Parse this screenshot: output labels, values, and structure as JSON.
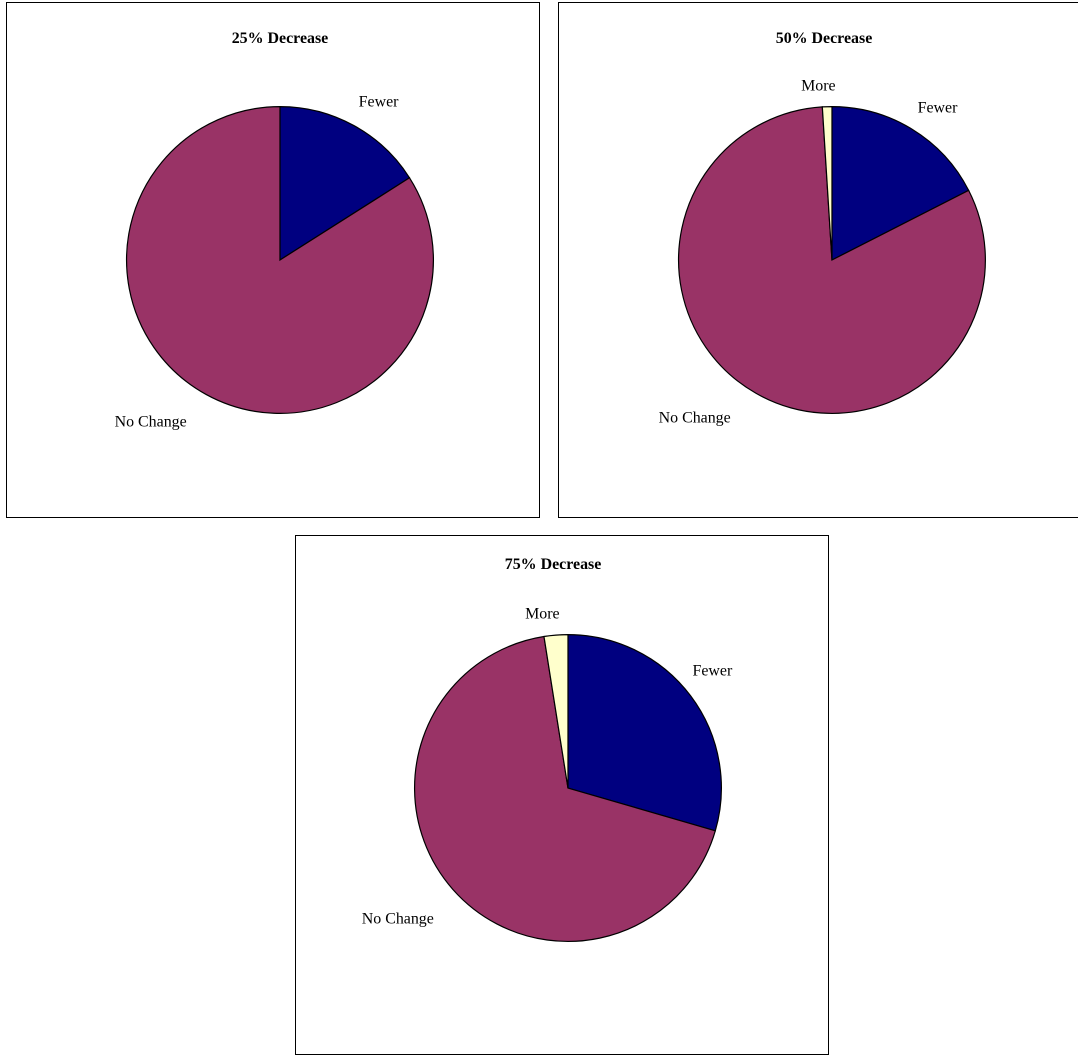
{
  "colors": {
    "Fewer": "#000080",
    "No Change": "#993366",
    "More": "#ffffcc"
  },
  "chart_data": [
    {
      "type": "pie",
      "title": "25% Decrease",
      "slices": [
        {
          "label": "Fewer",
          "value": 16
        },
        {
          "label": "No Change",
          "value": 84
        },
        {
          "label": "More",
          "value": 0
        }
      ],
      "labels_shown": [
        "Fewer",
        "No Change"
      ]
    },
    {
      "type": "pie",
      "title": "50% Decrease",
      "slices": [
        {
          "label": "Fewer",
          "value": 17.5
        },
        {
          "label": "No Change",
          "value": 81.5
        },
        {
          "label": "More",
          "value": 1
        }
      ],
      "labels_shown": [
        "Fewer",
        "No Change",
        "More"
      ]
    },
    {
      "type": "pie",
      "title": "75% Decrease",
      "slices": [
        {
          "label": "Fewer",
          "value": 29.5
        },
        {
          "label": "No Change",
          "value": 68
        },
        {
          "label": "More",
          "value": 2.5
        }
      ],
      "labels_shown": [
        "Fewer",
        "No Change",
        "More"
      ]
    }
  ]
}
